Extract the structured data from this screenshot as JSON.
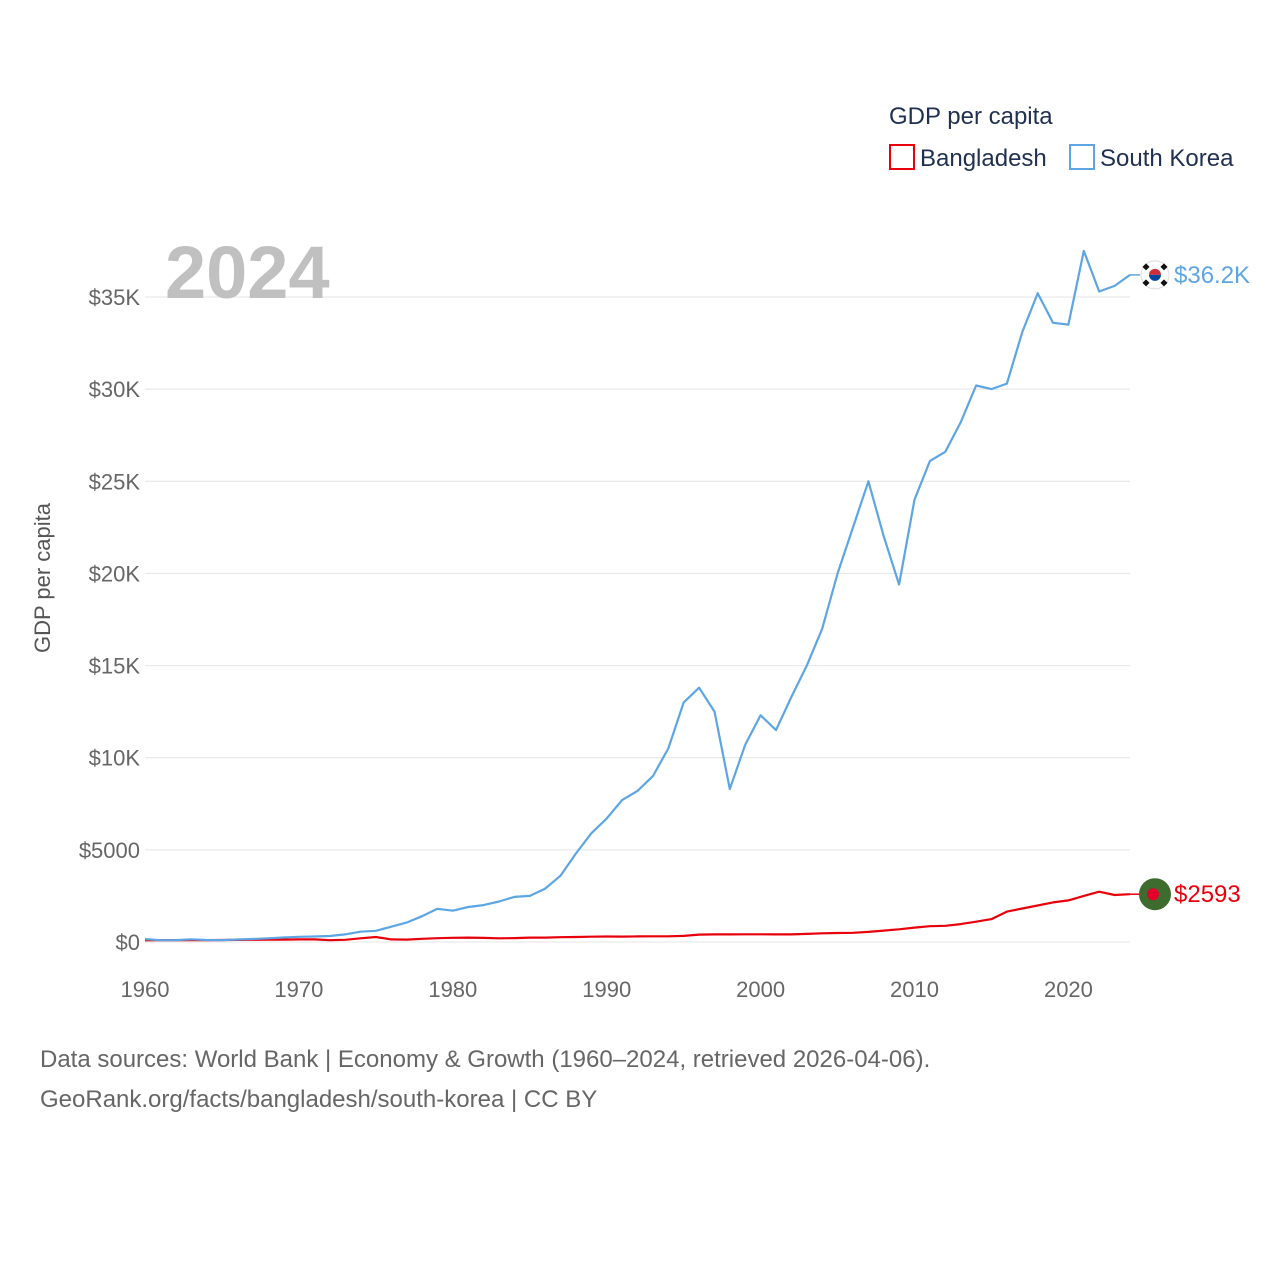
{
  "chart_data": {
    "type": "line",
    "year_label": "2024",
    "ylabel": "GDP per capita",
    "xlabel": "",
    "legend_title": "GDP per capita",
    "ylim": [
      0,
      38000
    ],
    "xlim": [
      1960,
      2024
    ],
    "y_ticks": [
      {
        "value": 0,
        "label": "$0"
      },
      {
        "value": 5000,
        "label": "$5000"
      },
      {
        "value": 10000,
        "label": "$10K"
      },
      {
        "value": 15000,
        "label": "$15K"
      },
      {
        "value": 20000,
        "label": "$20K"
      },
      {
        "value": 25000,
        "label": "$25K"
      },
      {
        "value": 30000,
        "label": "$30K"
      },
      {
        "value": 35000,
        "label": "$35K"
      }
    ],
    "x_ticks": [
      {
        "value": 1960,
        "label": "1960"
      },
      {
        "value": 1970,
        "label": "1970"
      },
      {
        "value": 1980,
        "label": "1980"
      },
      {
        "value": 1990,
        "label": "1990"
      },
      {
        "value": 2000,
        "label": "2000"
      },
      {
        "value": 2010,
        "label": "2010"
      },
      {
        "value": 2020,
        "label": "2020"
      }
    ],
    "x": [
      1960,
      1961,
      1962,
      1963,
      1964,
      1965,
      1966,
      1967,
      1968,
      1969,
      1970,
      1971,
      1972,
      1973,
      1974,
      1975,
      1976,
      1977,
      1978,
      1979,
      1980,
      1981,
      1982,
      1983,
      1984,
      1985,
      1986,
      1987,
      1988,
      1989,
      1990,
      1991,
      1992,
      1993,
      1994,
      1995,
      1996,
      1997,
      1998,
      1999,
      2000,
      2001,
      2002,
      2003,
      2004,
      2005,
      2006,
      2007,
      2008,
      2009,
      2010,
      2011,
      2012,
      2013,
      2014,
      2015,
      2016,
      2017,
      2018,
      2019,
      2020,
      2021,
      2022,
      2023,
      2024
    ],
    "series": [
      {
        "name": "Bangladesh",
        "color": "#e8000b",
        "end_label": "$2593",
        "values": [
          90,
          95,
          100,
          100,
          105,
          110,
          115,
          120,
          125,
          130,
          140,
          140,
          95,
          120,
          200,
          270,
          140,
          130,
          175,
          205,
          230,
          240,
          220,
          200,
          210,
          240,
          240,
          260,
          270,
          290,
          300,
          295,
          305,
          310,
          310,
          330,
          400,
          410,
          415,
          420,
          420,
          410,
          410,
          440,
          470,
          490,
          500,
          550,
          620,
          690,
          780,
          860,
          880,
          970,
          1100,
          1240,
          1650,
          1820,
          1980,
          2150,
          2260,
          2500,
          2730,
          2550,
          2593
        ]
      },
      {
        "name": "South Korea",
        "color": "#5da5e3",
        "end_label": "$36.2K",
        "values": [
          160,
          95,
          105,
          145,
          110,
          105,
          135,
          165,
          200,
          245,
          280,
          300,
          325,
          410,
          560,
          610,
          830,
          1050,
          1400,
          1800,
          1700,
          1900,
          2000,
          2200,
          2450,
          2500,
          2900,
          3600,
          4800,
          5900,
          6700,
          7700,
          8200,
          9000,
          10500,
          13000,
          13800,
          12500,
          8300,
          10700,
          12300,
          11500,
          13300,
          15000,
          17000,
          20000,
          22500,
          25000,
          22000,
          19400,
          24000,
          26100,
          26600,
          28200,
          30200,
          30000,
          30300,
          33100,
          35200,
          33600,
          33500,
          37500,
          35300,
          35600,
          36200
        ]
      }
    ]
  },
  "flags": {
    "south_korea": "south-korea-flag-icon",
    "bangladesh": "bangladesh-flag-icon"
  },
  "footer": {
    "line1": "Data sources: World Bank | Economy & Growth (1960–2024, retrieved 2026-04-06).",
    "line2": "GeoRank.org/facts/bangladesh/south-korea | CC BY"
  }
}
